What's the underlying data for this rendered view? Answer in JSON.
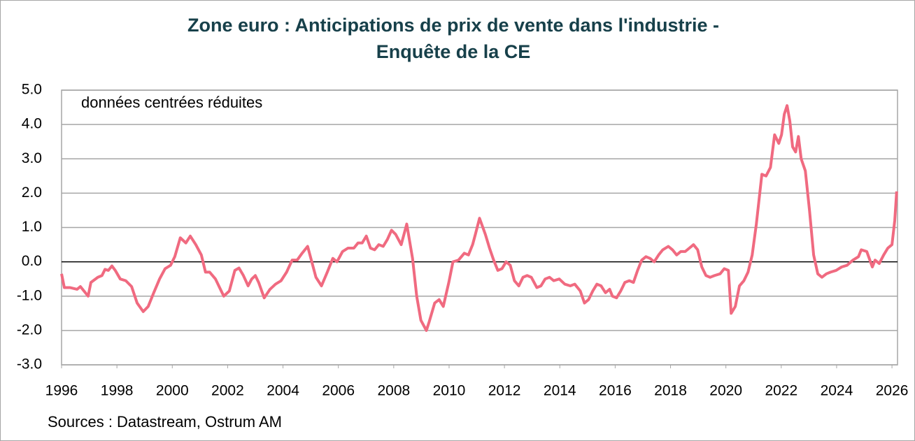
{
  "chart_data": {
    "type": "line",
    "title": [
      "Zone euro : Anticipations de prix de vente dans l'industrie -",
      "Enquête de la CE"
    ],
    "annotation": "données centrées réduites",
    "source": "Sources : Datastream, Ostrum AM",
    "x": [
      1996.0,
      1996.1,
      1996.3,
      1996.56,
      1996.68,
      1996.81,
      1996.96,
      1997.06,
      1997.31,
      1997.46,
      1997.57,
      1997.69,
      1997.82,
      1997.94,
      1998.12,
      1998.32,
      1998.53,
      1998.73,
      1998.95,
      1999.13,
      1999.33,
      1999.54,
      1999.74,
      1999.94,
      2000.09,
      2000.29,
      2000.49,
      2000.65,
      2000.85,
      2001.05,
      2001.2,
      2001.35,
      2001.56,
      2001.71,
      2001.86,
      2002.06,
      2002.26,
      2002.41,
      2002.57,
      2002.74,
      2002.87,
      2003.0,
      2003.12,
      2003.32,
      2003.53,
      2003.73,
      2003.93,
      2004.13,
      2004.33,
      2004.51,
      2004.69,
      2004.89,
      2005.04,
      2005.19,
      2005.39,
      2005.6,
      2005.8,
      2005.95,
      2006.15,
      2006.35,
      2006.56,
      2006.71,
      2006.86,
      2007.01,
      2007.16,
      2007.31,
      2007.46,
      2007.62,
      2007.77,
      2007.92,
      2008.07,
      2008.27,
      2008.47,
      2008.68,
      2008.83,
      2008.98,
      2009.18,
      2009.28,
      2009.48,
      2009.64,
      2009.79,
      2009.99,
      2010.14,
      2010.34,
      2010.55,
      2010.7,
      2010.85,
      2010.95,
      2011.1,
      2011.31,
      2011.46,
      2011.61,
      2011.76,
      2011.91,
      2012.06,
      2012.21,
      2012.36,
      2012.52,
      2012.67,
      2012.82,
      2012.97,
      2013.17,
      2013.32,
      2013.47,
      2013.63,
      2013.78,
      2013.98,
      2014.18,
      2014.38,
      2014.54,
      2014.74,
      2014.89,
      2015.04,
      2015.19,
      2015.34,
      2015.49,
      2015.65,
      2015.8,
      2015.9,
      2016.05,
      2016.2,
      2016.35,
      2016.51,
      2016.66,
      2016.81,
      2016.96,
      2017.11,
      2017.26,
      2017.41,
      2017.57,
      2017.72,
      2017.92,
      2018.07,
      2018.22,
      2018.37,
      2018.53,
      2018.68,
      2018.83,
      2018.98,
      2019.13,
      2019.28,
      2019.43,
      2019.59,
      2019.79,
      2019.94,
      2020.09,
      2020.19,
      2020.34,
      2020.49,
      2020.65,
      2020.8,
      2020.95,
      2021.1,
      2021.3,
      2021.45,
      2021.61,
      2021.76,
      2021.91,
      2022.01,
      2022.11,
      2022.21,
      2022.31,
      2022.41,
      2022.52,
      2022.62,
      2022.72,
      2022.87,
      2023.02,
      2023.17,
      2023.32,
      2023.47,
      2023.63,
      2023.78,
      2023.98,
      2024.18,
      2024.38,
      2024.59,
      2024.79,
      2024.89,
      2025.09,
      2025.29,
      2025.39,
      2025.54,
      2025.7,
      2025.85,
      2026.0,
      2026.1,
      2026.17
    ],
    "series": [
      {
        "name": "Anticipations de prix de vente",
        "color": "#f06a80",
        "values": [
          -0.35,
          -0.75,
          -0.75,
          -0.8,
          -0.72,
          -0.85,
          -1.0,
          -0.6,
          -0.45,
          -0.4,
          -0.22,
          -0.25,
          -0.12,
          -0.25,
          -0.5,
          -0.55,
          -0.72,
          -1.2,
          -1.45,
          -1.3,
          -0.9,
          -0.5,
          -0.2,
          -0.1,
          0.15,
          0.7,
          0.55,
          0.75,
          0.5,
          0.2,
          -0.3,
          -0.3,
          -0.5,
          -0.75,
          -1.0,
          -0.85,
          -0.25,
          -0.18,
          -0.4,
          -0.7,
          -0.5,
          -0.4,
          -0.6,
          -1.05,
          -0.8,
          -0.65,
          -0.55,
          -0.3,
          0.05,
          0.05,
          0.25,
          0.45,
          0.0,
          -0.45,
          -0.7,
          -0.3,
          0.1,
          0.0,
          0.3,
          0.4,
          0.4,
          0.55,
          0.55,
          0.75,
          0.4,
          0.35,
          0.5,
          0.45,
          0.65,
          0.92,
          0.8,
          0.5,
          1.1,
          0.1,
          -1.0,
          -1.7,
          -2.0,
          -1.75,
          -1.2,
          -1.1,
          -1.3,
          -0.6,
          0.0,
          0.05,
          0.25,
          0.2,
          0.5,
          0.8,
          1.27,
          0.8,
          0.4,
          0.05,
          -0.25,
          -0.2,
          0.0,
          -0.1,
          -0.55,
          -0.7,
          -0.45,
          -0.4,
          -0.45,
          -0.75,
          -0.7,
          -0.5,
          -0.45,
          -0.55,
          -0.5,
          -0.65,
          -0.7,
          -0.65,
          -0.85,
          -1.2,
          -1.1,
          -0.85,
          -0.65,
          -0.7,
          -0.9,
          -0.8,
          -1.0,
          -1.05,
          -0.85,
          -0.6,
          -0.55,
          -0.6,
          -0.25,
          0.05,
          0.15,
          0.1,
          0.0,
          0.2,
          0.35,
          0.45,
          0.35,
          0.2,
          0.3,
          0.3,
          0.4,
          0.5,
          0.35,
          -0.15,
          -0.4,
          -0.45,
          -0.4,
          -0.35,
          -0.2,
          -0.25,
          -1.5,
          -1.3,
          -0.7,
          -0.55,
          -0.3,
          0.2,
          1.1,
          2.55,
          2.5,
          2.75,
          3.7,
          3.45,
          3.7,
          4.3,
          4.55,
          4.1,
          3.35,
          3.2,
          3.65,
          3.0,
          2.65,
          1.5,
          0.2,
          -0.35,
          -0.45,
          -0.35,
          -0.3,
          -0.25,
          -0.15,
          -0.1,
          0.05,
          0.15,
          0.35,
          0.3,
          -0.15,
          0.05,
          -0.05,
          0.2,
          0.4,
          0.5,
          1.2,
          2.05
        ]
      }
    ],
    "xlim": [
      1996,
      2026.2
    ],
    "xticks": [
      1996,
      1998,
      2000,
      2002,
      2004,
      2006,
      2008,
      2010,
      2012,
      2014,
      2016,
      2018,
      2020,
      2022,
      2024,
      2026
    ],
    "ylim": [
      -3,
      5
    ],
    "yticks": [
      {
        "value": -3,
        "label": "-3.0"
      },
      {
        "value": -2,
        "label": "-2.0"
      },
      {
        "value": -1,
        "label": "-1.0"
      },
      {
        "value": 0,
        "label": "0.0"
      },
      {
        "value": 1,
        "label": "1.0"
      },
      {
        "value": 2,
        "label": "2.0"
      },
      {
        "value": 3,
        "label": "3.0"
      },
      {
        "value": 4,
        "label": "4.0"
      },
      {
        "value": 5,
        "label": "5.0"
      }
    ],
    "grid": true
  }
}
